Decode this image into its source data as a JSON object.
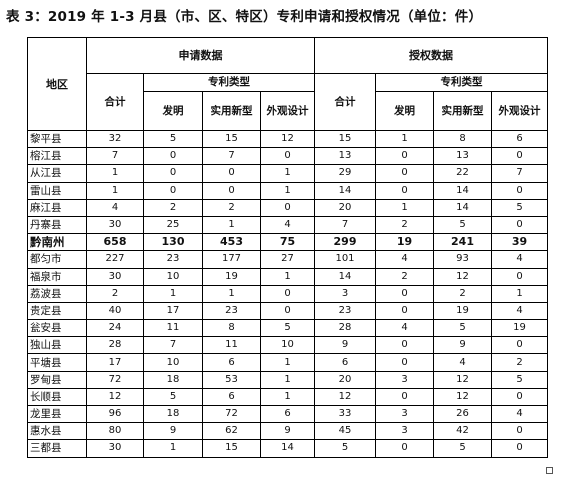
{
  "title": "表 3：2019 年 1-3 月县（市、区、特区）专利申请和授权情况（单位：件）",
  "headers": {
    "region": "地区",
    "application_group": "申请数据",
    "grant_group": "授权数据",
    "total": "合计",
    "patent_type": "专利类型",
    "invention": "发明",
    "utility_model": "实用新型",
    "design": "外观设计"
  },
  "rows": [
    {
      "region": "黎平县",
      "app_total": "32",
      "app_invention": "5",
      "app_utility": "15",
      "app_design": "12",
      "grant_total": "15",
      "grant_invention": "1",
      "grant_utility": "8",
      "grant_design": "6",
      "bold": false
    },
    {
      "region": "榕江县",
      "app_total": "7",
      "app_invention": "0",
      "app_utility": "7",
      "app_design": "0",
      "grant_total": "13",
      "grant_invention": "0",
      "grant_utility": "13",
      "grant_design": "0",
      "bold": false
    },
    {
      "region": "从江县",
      "app_total": "1",
      "app_invention": "0",
      "app_utility": "0",
      "app_design": "1",
      "grant_total": "29",
      "grant_invention": "0",
      "grant_utility": "22",
      "grant_design": "7",
      "bold": false
    },
    {
      "region": "雷山县",
      "app_total": "1",
      "app_invention": "0",
      "app_utility": "0",
      "app_design": "1",
      "grant_total": "14",
      "grant_invention": "0",
      "grant_utility": "14",
      "grant_design": "0",
      "bold": false
    },
    {
      "region": "麻江县",
      "app_total": "4",
      "app_invention": "2",
      "app_utility": "2",
      "app_design": "0",
      "grant_total": "20",
      "grant_invention": "1",
      "grant_utility": "14",
      "grant_design": "5",
      "bold": false
    },
    {
      "region": "丹寨县",
      "app_total": "30",
      "app_invention": "25",
      "app_utility": "1",
      "app_design": "4",
      "grant_total": "7",
      "grant_invention": "2",
      "grant_utility": "5",
      "grant_design": "0",
      "bold": false
    },
    {
      "region": "黔南州",
      "app_total": "658",
      "app_invention": "130",
      "app_utility": "453",
      "app_design": "75",
      "grant_total": "299",
      "grant_invention": "19",
      "grant_utility": "241",
      "grant_design": "39",
      "bold": true
    },
    {
      "region": "都匀市",
      "app_total": "227",
      "app_invention": "23",
      "app_utility": "177",
      "app_design": "27",
      "grant_total": "101",
      "grant_invention": "4",
      "grant_utility": "93",
      "grant_design": "4",
      "bold": false
    },
    {
      "region": "福泉市",
      "app_total": "30",
      "app_invention": "10",
      "app_utility": "19",
      "app_design": "1",
      "grant_total": "14",
      "grant_invention": "2",
      "grant_utility": "12",
      "grant_design": "0",
      "bold": false
    },
    {
      "region": "荔波县",
      "app_total": "2",
      "app_invention": "1",
      "app_utility": "1",
      "app_design": "0",
      "grant_total": "3",
      "grant_invention": "0",
      "grant_utility": "2",
      "grant_design": "1",
      "bold": false
    },
    {
      "region": "贵定县",
      "app_total": "40",
      "app_invention": "17",
      "app_utility": "23",
      "app_design": "0",
      "grant_total": "23",
      "grant_invention": "0",
      "grant_utility": "19",
      "grant_design": "4",
      "bold": false
    },
    {
      "region": "瓮安县",
      "app_total": "24",
      "app_invention": "11",
      "app_utility": "8",
      "app_design": "5",
      "grant_total": "28",
      "grant_invention": "4",
      "grant_utility": "5",
      "grant_design": "19",
      "bold": false
    },
    {
      "region": "独山县",
      "app_total": "28",
      "app_invention": "7",
      "app_utility": "11",
      "app_design": "10",
      "grant_total": "9",
      "grant_invention": "0",
      "grant_utility": "9",
      "grant_design": "0",
      "bold": false
    },
    {
      "region": "平塘县",
      "app_total": "17",
      "app_invention": "10",
      "app_utility": "6",
      "app_design": "1",
      "grant_total": "6",
      "grant_invention": "0",
      "grant_utility": "4",
      "grant_design": "2",
      "bold": false
    },
    {
      "region": "罗甸县",
      "app_total": "72",
      "app_invention": "18",
      "app_utility": "53",
      "app_design": "1",
      "grant_total": "20",
      "grant_invention": "3",
      "grant_utility": "12",
      "grant_design": "5",
      "bold": false
    },
    {
      "region": "长顺县",
      "app_total": "12",
      "app_invention": "5",
      "app_utility": "6",
      "app_design": "1",
      "grant_total": "12",
      "grant_invention": "0",
      "grant_utility": "12",
      "grant_design": "0",
      "bold": false
    },
    {
      "region": "龙里县",
      "app_total": "96",
      "app_invention": "18",
      "app_utility": "72",
      "app_design": "6",
      "grant_total": "33",
      "grant_invention": "3",
      "grant_utility": "26",
      "grant_design": "4",
      "bold": false
    },
    {
      "region": "惠水县",
      "app_total": "80",
      "app_invention": "9",
      "app_utility": "62",
      "app_design": "9",
      "grant_total": "45",
      "grant_invention": "3",
      "grant_utility": "42",
      "grant_design": "0",
      "bold": false
    },
    {
      "region": "三都县",
      "app_total": "30",
      "app_invention": "1",
      "app_utility": "15",
      "app_design": "14",
      "grant_total": "5",
      "grant_invention": "0",
      "grant_utility": "5",
      "grant_design": "0",
      "bold": false
    }
  ]
}
